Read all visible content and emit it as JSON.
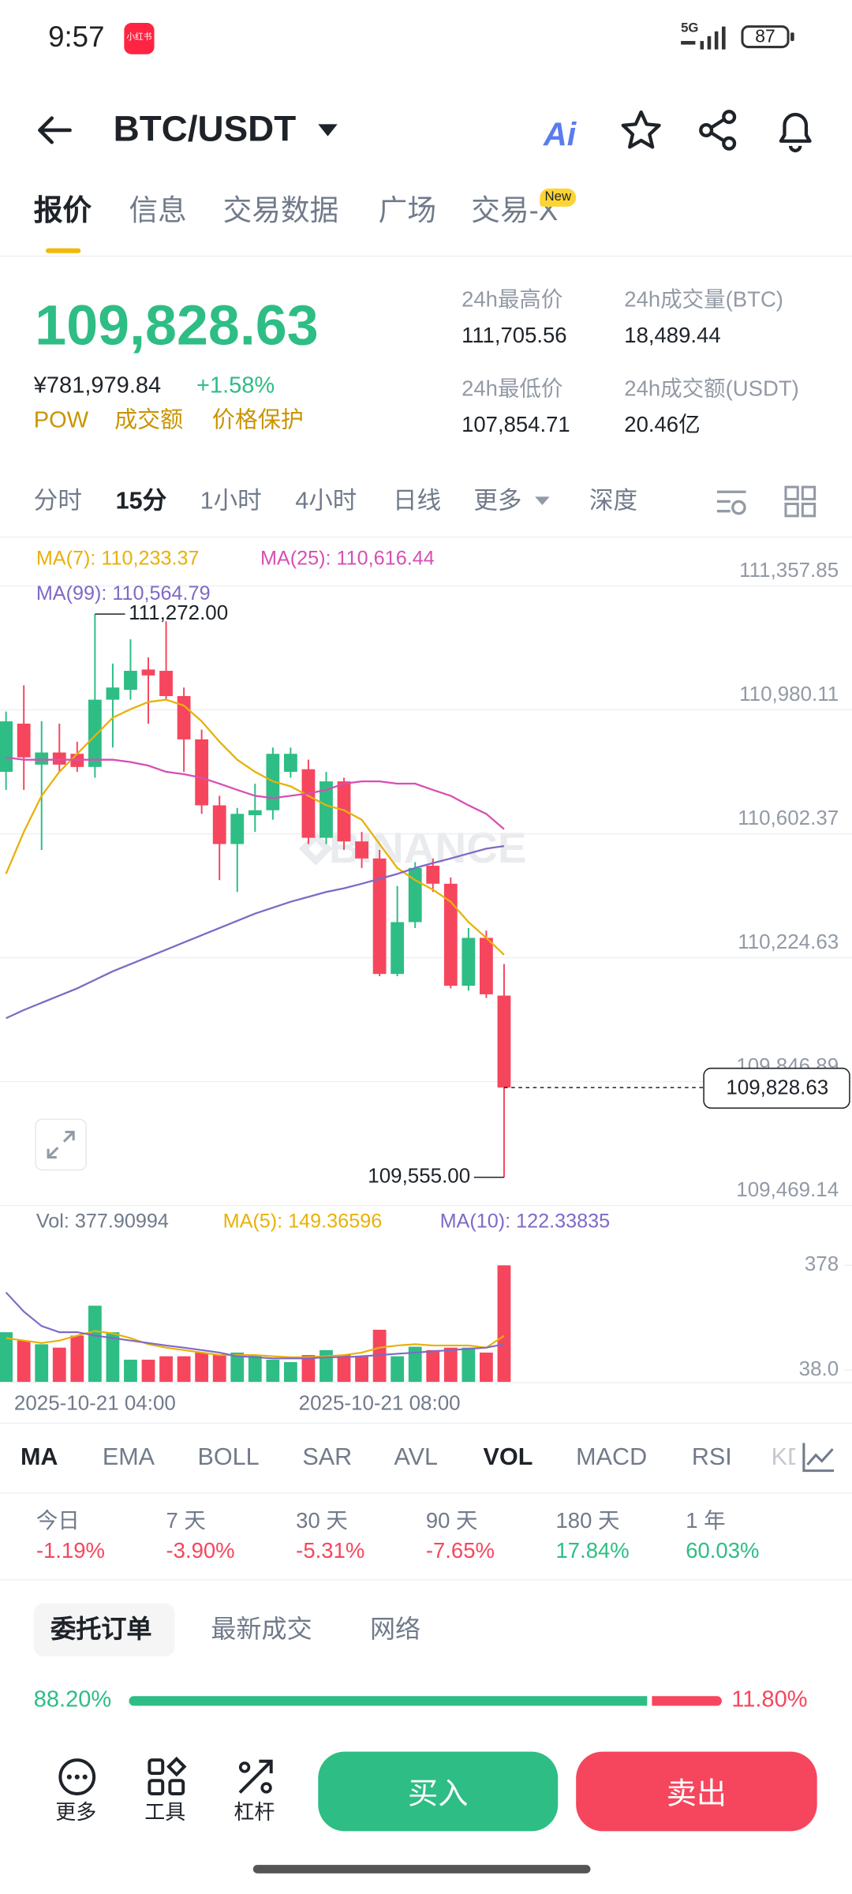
{
  "status_bar": {
    "time": "9:57",
    "app_badge": "小红书",
    "network": "5G",
    "battery": "87"
  },
  "header": {
    "pair": "BTC/USDT",
    "ai": "Ai"
  },
  "tabs": [
    "报价",
    "信息",
    "交易数据",
    "广场",
    "交易-X"
  ],
  "tab_badge": "New",
  "ticker": {
    "price": "109,828.63",
    "cny": "¥781,979.84",
    "change": "+1.58%",
    "tags": [
      "POW",
      "成交额",
      "价格保护"
    ],
    "stats": [
      {
        "label": "24h最高价",
        "value": "111,705.56"
      },
      {
        "label": "24h成交量(BTC)",
        "value": "18,489.44"
      },
      {
        "label": "24h最低价",
        "value": "107,854.71"
      },
      {
        "label": "24h成交额(USDT)",
        "value": "20.46亿"
      }
    ]
  },
  "intervals": [
    "分时",
    "15分",
    "1小时",
    "4小时",
    "日线",
    "更多",
    "深度"
  ],
  "chart_data": [
    {
      "type": "candlestick",
      "up_color": "#2ebd85",
      "down_color": "#f6465d",
      "grid": true,
      "watermark": "BINANCE",
      "open": [
        110791,
        110938,
        110813,
        110850,
        110846,
        110806,
        111011,
        111041,
        111103,
        111099,
        111022,
        110890,
        110689,
        110571,
        110659,
        110674,
        110791,
        110799,
        110590,
        110762,
        110579,
        110527,
        110175,
        110333,
        110505,
        110450,
        110139,
        110285,
        110109
      ],
      "high": [
        110975,
        111055,
        110945,
        110938,
        110883,
        111272,
        111121,
        111195,
        111140,
        111250,
        111048,
        110920,
        110718,
        110681,
        110755,
        110865,
        110865,
        110828,
        110791,
        110773,
        110608,
        110553,
        110443,
        110516,
        110527,
        110469,
        110315,
        110307,
        110205
      ],
      "low": [
        110736,
        110736,
        110553,
        110791,
        110791,
        110773,
        110865,
        111011,
        110938,
        111011,
        110791,
        110663,
        110461,
        110425,
        110608,
        110645,
        110773,
        110571,
        110571,
        110553,
        110498,
        110168,
        110168,
        110315,
        110425,
        110131,
        110124,
        110102,
        109555
      ],
      "close": [
        110945,
        110835,
        110850,
        110813,
        110806,
        111011,
        111048,
        111099,
        111085,
        111022,
        110890,
        110689,
        110571,
        110663,
        110674,
        110846,
        110846,
        110590,
        110762,
        110579,
        110527,
        110175,
        110333,
        110498,
        110450,
        110139,
        110285,
        110113,
        109828.63
      ],
      "series": [
        {
          "name": "MA(7): 110,233.37",
          "color": "#e8b10a",
          "values": [
            110480,
            110608,
            110718,
            110791,
            110846,
            110901,
            110956,
            110982,
            111004,
            111011,
            110993,
            110945,
            110883,
            110828,
            110791,
            110762,
            110747,
            110718,
            110689,
            110674,
            110645,
            110571,
            110498,
            110461,
            110432,
            110395,
            110333,
            110285,
            110233.37
          ]
        },
        {
          "name": "MA(25): 110,616.44",
          "color": "#d64fb4",
          "values": [
            110835,
            110828,
            110828,
            110828,
            110828,
            110828,
            110828,
            110821,
            110810,
            110791,
            110784,
            110773,
            110755,
            110736,
            110718,
            110711,
            110718,
            110725,
            110736,
            110755,
            110762,
            110762,
            110755,
            110755,
            110736,
            110718,
            110689,
            110663,
            110616.44
          ]
        },
        {
          "name": "MA(99): 110,564.79",
          "color": "#7f69c6",
          "values": [
            110040,
            110065,
            110087,
            110109,
            110131,
            110157,
            110183,
            110205,
            110227,
            110249,
            110271,
            110293,
            110315,
            110337,
            110359,
            110377,
            110395,
            110410,
            110425,
            110436,
            110450,
            110465,
            110480,
            110498,
            110513,
            110527,
            110542,
            110557,
            110564.79
          ]
        }
      ],
      "ylim": [
        109469.14,
        111501.2
      ],
      "yticks": [
        {
          "value": 111357.85,
          "label": "111,357.85"
        },
        {
          "value": 110980.11,
          "label": "110,980.11"
        },
        {
          "value": 110602.37,
          "label": "110,602.37"
        },
        {
          "value": 110224.63,
          "label": "110,224.63"
        },
        {
          "value": 109846.89,
          "label": "109,846.89"
        },
        {
          "value": 109469.14,
          "label": "109,469.14"
        }
      ],
      "high_label": "111,272.00",
      "low_label": "109,555.00",
      "last_price": {
        "value": 109828.63,
        "label": "109,828.63"
      }
    },
    {
      "type": "bar",
      "label": "Vol: 377.90994",
      "categories": [
        null,
        null,
        null,
        null,
        null,
        "2025-10-21 04:00",
        null,
        null,
        null,
        null,
        null,
        null,
        null,
        null,
        null,
        null,
        null,
        null,
        null,
        null,
        null,
        "2025-10-21 08:00",
        null,
        null,
        null,
        null,
        null,
        null,
        null
      ],
      "values": [
        161,
        134,
        122,
        111,
        150,
        247,
        161,
        72,
        72,
        83,
        83,
        95,
        87,
        95,
        87,
        72,
        64,
        87,
        103,
        87,
        83,
        169,
        83,
        114,
        103,
        111,
        111,
        95,
        377.90994
      ],
      "series": [
        {
          "name": "MA(5): 149.36596",
          "color": "#e8b10a",
          "values": [
            142,
            134,
            126,
            134,
            150,
            165,
            157,
            142,
            122,
            111,
            103,
            95,
            87,
            87,
            87,
            83,
            80,
            80,
            83,
            87,
            95,
            111,
            118,
            122,
            118,
            118,
            118,
            111,
            149.36596
          ]
        },
        {
          "name": "MA(10): 122.33835",
          "color": "#7f69c6",
          "values": [
            290,
            228,
            181,
            161,
            161,
            150,
            142,
            134,
            126,
            118,
            111,
            103,
            95,
            83,
            80,
            76,
            76,
            76,
            80,
            80,
            83,
            87,
            91,
            95,
            99,
            103,
            107,
            111,
            122.33835
          ]
        }
      ],
      "ylim": [
        0,
        560
      ],
      "yticks": [
        378,
        {
          "value": 38,
          "label": "38.0"
        }
      ]
    }
  ],
  "indicators": [
    "MA",
    "EMA",
    "BOLL",
    "SAR",
    "AVL",
    "VOL",
    "MACD",
    "RSI",
    "KDJ"
  ],
  "performance": [
    {
      "period": "今日",
      "change": "-1.19%"
    },
    {
      "period": "7 天",
      "change": "-3.90%"
    },
    {
      "period": "30 天",
      "change": "-5.31%"
    },
    {
      "period": "90 天",
      "change": "-7.65%"
    },
    {
      "period": "180 天",
      "change": "17.84%"
    },
    {
      "period": "1 年",
      "change": "60.03%"
    }
  ],
  "order_tabs": [
    "委托订单",
    "最新成交",
    "网络"
  ],
  "order_ratio": {
    "buy": {
      "value": 88.2,
      "label": "88.20%"
    },
    "sell": {
      "value": 11.8,
      "label": "11.80%"
    }
  },
  "bottom_bar": {
    "tools": [
      "更多",
      "工具",
      "杠杆"
    ],
    "buy": "买入",
    "sell": "卖出"
  }
}
